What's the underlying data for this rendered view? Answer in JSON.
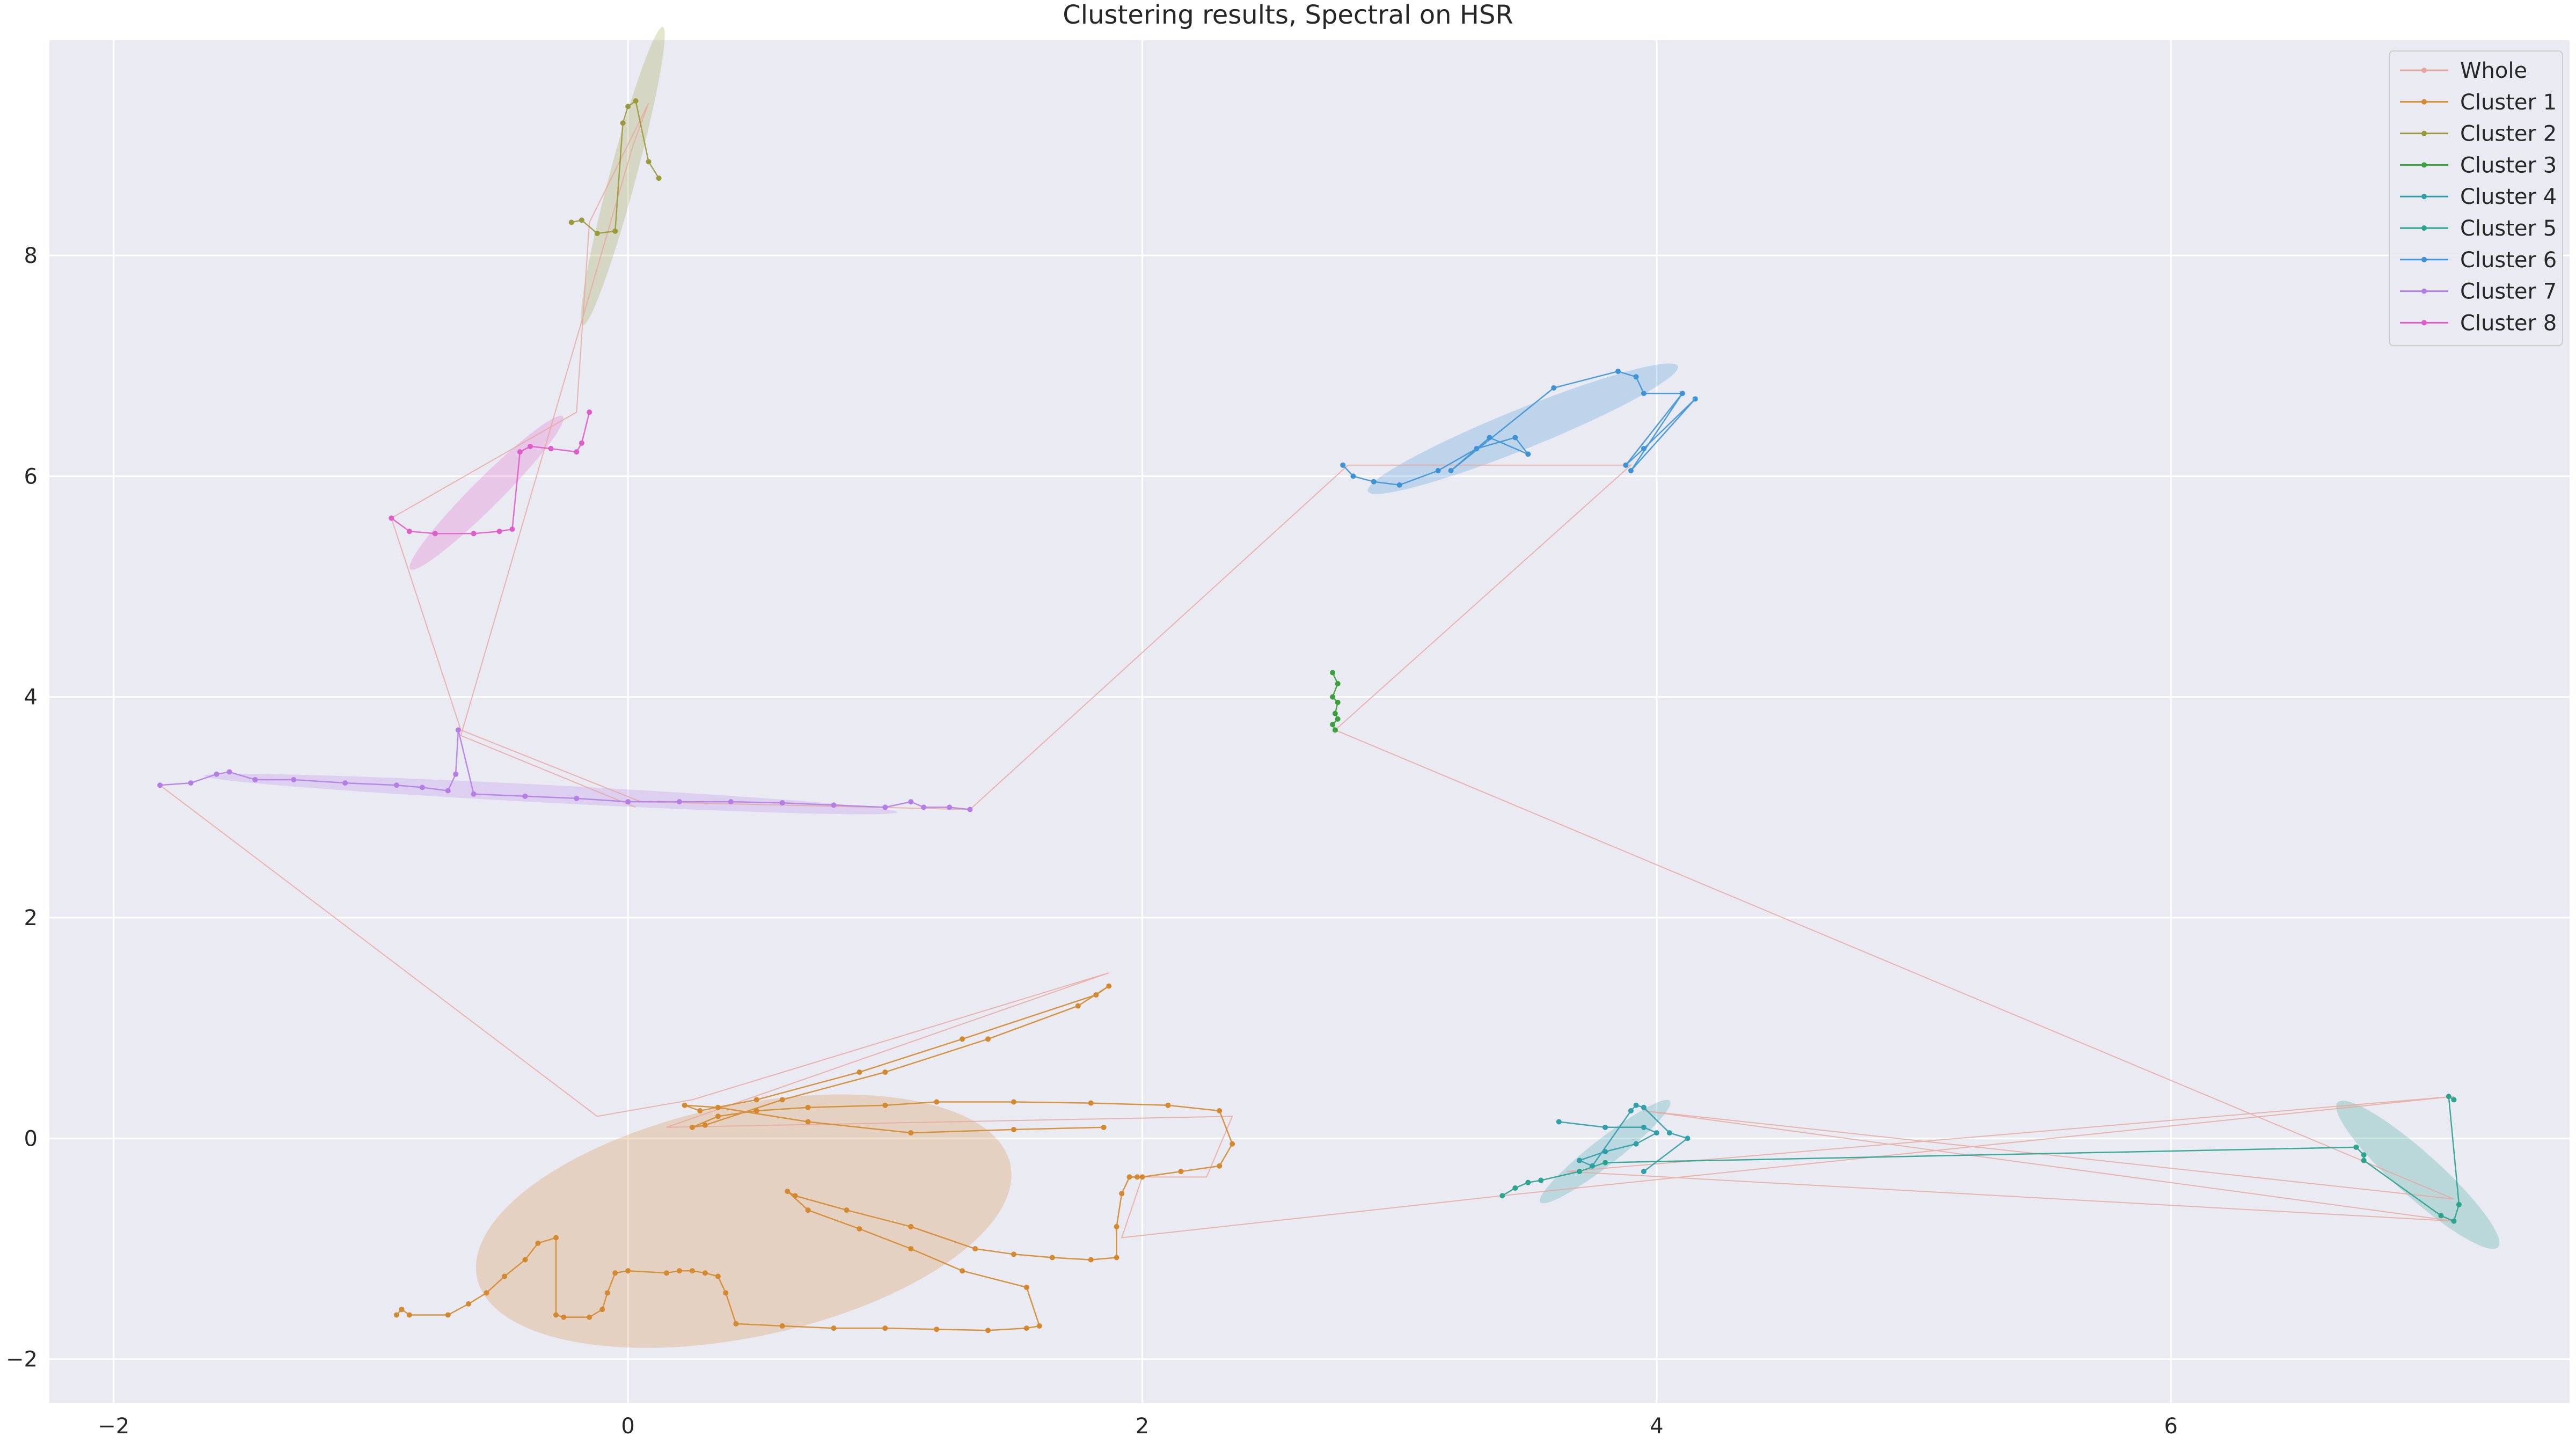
{
  "chart_data": {
    "type": "line",
    "title": "Clustering results, Spectral on HSR",
    "xlabel": "",
    "ylabel": "",
    "xlim": [
      -2.25,
      7.55
    ],
    "ylim": [
      -2.4,
      9.95
    ],
    "xticks": [
      -2,
      0,
      2,
      4,
      6
    ],
    "xtick_labels": [
      "−2",
      "0",
      "2",
      "4",
      "6"
    ],
    "yticks": [
      -2,
      0,
      2,
      4,
      6,
      8
    ],
    "ytick_labels": [
      "−2",
      "0",
      "2",
      "4",
      "6",
      "8"
    ],
    "grid": true,
    "legend_position": "top-right",
    "colors": {
      "background": "#eaeaf2",
      "grid": "#ffffff",
      "Whole": "#e8a59a",
      "Cluster 1": "#d4892e",
      "Cluster 2": "#9a9a3a",
      "Cluster 3": "#3aa03a",
      "Cluster 4": "#2f9fa8",
      "Cluster 5": "#2aa38f",
      "Cluster 6": "#3d93d6",
      "Cluster 7": "#b57ee6",
      "Cluster 8": "#e05cc8"
    },
    "legend": [
      "Whole",
      "Cluster 1",
      "Cluster 2",
      "Cluster 3",
      "Cluster 4",
      "Cluster 5",
      "Cluster 6",
      "Cluster 7",
      "Cluster 8"
    ],
    "series": [
      {
        "name": "Whole",
        "x": [
          -1.82,
          -0.12,
          0.25,
          1.87,
          0.15,
          2.35,
          2.25,
          2.0,
          1.92,
          3.4,
          7.1,
          3.65,
          7.1,
          3.95,
          7.1,
          2.75,
          3.9,
          2.8,
          1.33,
          0.05,
          -0.65,
          -0.92,
          -0.2,
          -0.15,
          0.08,
          0.02,
          -0.65,
          0.03
        ],
        "y": [
          3.2,
          0.2,
          0.35,
          1.5,
          0.1,
          0.2,
          -0.35,
          -0.35,
          -0.9,
          -0.52,
          0.38,
          -0.3,
          -0.75,
          0.25,
          -0.55,
          3.7,
          6.1,
          6.1,
          2.98,
          3.05,
          3.7,
          5.62,
          6.58,
          8.3,
          9.38,
          9.0,
          3.65,
          3.0
        ]
      },
      {
        "name": "Cluster 1",
        "x": [
          -0.9,
          -0.88,
          -0.85,
          -0.7,
          -0.62,
          -0.55,
          -0.48,
          -0.4,
          -0.35,
          -0.28,
          -0.28,
          -0.25,
          -0.15,
          -0.1,
          -0.08,
          -0.05,
          0.0,
          0.15,
          0.2,
          0.25,
          0.3,
          0.35,
          0.38,
          0.42,
          0.6,
          0.8,
          1.0,
          1.2,
          1.4,
          1.55,
          1.6,
          1.55,
          1.3,
          1.1,
          0.9,
          0.7,
          0.62,
          0.65,
          0.85,
          1.1,
          1.35,
          1.5,
          1.65,
          1.8,
          1.9,
          1.9,
          1.92,
          1.95,
          1.98,
          2.0,
          2.15,
          2.3,
          2.35,
          2.3,
          2.1,
          1.8,
          1.5,
          1.2,
          1.0,
          0.7,
          0.5,
          0.35,
          0.25,
          0.3,
          0.6,
          1.0,
          1.4,
          1.75,
          1.87,
          1.82,
          1.3,
          0.9,
          0.5,
          0.28,
          0.22,
          0.35,
          0.7,
          1.1,
          1.5,
          1.85
        ],
        "y": [
          -1.6,
          -1.55,
          -1.6,
          -1.6,
          -1.5,
          -1.4,
          -1.25,
          -1.1,
          -0.95,
          -0.9,
          -1.6,
          -1.62,
          -1.62,
          -1.55,
          -1.4,
          -1.22,
          -1.2,
          -1.22,
          -1.2,
          -1.2,
          -1.22,
          -1.25,
          -1.4,
          -1.68,
          -1.7,
          -1.72,
          -1.72,
          -1.73,
          -1.74,
          -1.72,
          -1.7,
          -1.35,
          -1.2,
          -1.0,
          -0.82,
          -0.65,
          -0.48,
          -0.52,
          -0.65,
          -0.8,
          -1.0,
          -1.05,
          -1.08,
          -1.1,
          -1.08,
          -0.8,
          -0.5,
          -0.35,
          -0.35,
          -0.35,
          -0.3,
          -0.25,
          -0.05,
          0.25,
          0.3,
          0.32,
          0.33,
          0.33,
          0.3,
          0.28,
          0.25,
          0.2,
          0.1,
          0.12,
          0.35,
          0.6,
          0.9,
          1.2,
          1.38,
          1.3,
          0.9,
          0.6,
          0.35,
          0.25,
          0.3,
          0.28,
          0.15,
          0.05,
          0.08,
          0.1
        ]
      },
      {
        "name": "Cluster 2",
        "x": [
          -0.22,
          -0.18,
          -0.12,
          -0.05,
          -0.02,
          0.0,
          0.03,
          0.08,
          0.12
        ],
        "y": [
          8.3,
          8.32,
          8.2,
          8.22,
          9.2,
          9.35,
          9.4,
          8.85,
          8.7
        ]
      },
      {
        "name": "Cluster 3",
        "x": [
          2.74,
          2.76,
          2.74,
          2.76,
          2.75,
          2.76,
          2.74,
          2.75
        ],
        "y": [
          4.22,
          4.12,
          4.0,
          3.95,
          3.85,
          3.8,
          3.75,
          3.7
        ]
      },
      {
        "name": "Cluster 4",
        "x": [
          3.62,
          3.8,
          3.95,
          4.0,
          3.92,
          3.8,
          3.7,
          3.75,
          3.9,
          3.92,
          3.95,
          4.05,
          4.12,
          3.95
        ],
        "y": [
          0.15,
          0.1,
          0.1,
          0.05,
          -0.05,
          -0.12,
          -0.2,
          -0.25,
          0.25,
          0.3,
          0.28,
          0.05,
          0.0,
          -0.3
        ]
      },
      {
        "name": "Cluster 5",
        "x": [
          3.4,
          3.45,
          3.5,
          3.55,
          3.7,
          3.8,
          6.72,
          6.75,
          6.75,
          7.05,
          7.1,
          7.12,
          7.08,
          7.1
        ],
        "y": [
          -0.52,
          -0.45,
          -0.4,
          -0.38,
          -0.3,
          -0.22,
          -0.08,
          -0.15,
          -0.2,
          -0.7,
          -0.75,
          -0.6,
          0.38,
          0.35
        ]
      },
      {
        "name": "Cluster 6",
        "x": [
          2.78,
          2.82,
          2.9,
          3.0,
          3.15,
          3.3,
          3.45,
          3.5,
          3.35,
          3.2,
          3.6,
          3.85,
          3.92,
          3.95,
          4.1,
          3.9,
          4.15,
          3.95,
          3.88,
          4.1
        ],
        "y": [
          6.1,
          6.0,
          5.95,
          5.92,
          6.05,
          6.25,
          6.35,
          6.2,
          6.35,
          6.05,
          6.8,
          6.95,
          6.9,
          6.75,
          6.75,
          6.05,
          6.7,
          6.25,
          6.1,
          6.75
        ]
      },
      {
        "name": "Cluster 7",
        "x": [
          -1.82,
          -1.7,
          -1.6,
          -1.55,
          -1.45,
          -1.3,
          -1.1,
          -0.9,
          -0.8,
          -0.7,
          -0.67,
          -0.66,
          -0.6,
          -0.4,
          -0.2,
          0.0,
          0.2,
          0.4,
          0.6,
          0.8,
          1.0,
          1.1,
          1.15,
          1.25,
          1.33
        ],
        "y": [
          3.2,
          3.22,
          3.3,
          3.32,
          3.25,
          3.25,
          3.22,
          3.2,
          3.18,
          3.15,
          3.3,
          3.7,
          3.12,
          3.1,
          3.08,
          3.05,
          3.05,
          3.05,
          3.04,
          3.02,
          3.0,
          3.05,
          3.0,
          3.0,
          2.98
        ]
      },
      {
        "name": "Cluster 8",
        "x": [
          -0.92,
          -0.85,
          -0.75,
          -0.6,
          -0.5,
          -0.45,
          -0.42,
          -0.38,
          -0.3,
          -0.2,
          -0.18,
          -0.15
        ],
        "y": [
          5.62,
          5.5,
          5.48,
          5.48,
          5.5,
          5.52,
          6.22,
          6.27,
          6.25,
          6.22,
          6.3,
          6.58
        ]
      }
    ],
    "ellipses": [
      {
        "name": "Cluster 1",
        "cx": 0.45,
        "cy": -0.75,
        "rx": 1.06,
        "ry": 1.05,
        "angle_deg": 12
      },
      {
        "name": "Cluster 2",
        "cx": -0.02,
        "cy": 8.72,
        "rx": 0.6,
        "ry": 0.12,
        "angle_deg": 75
      },
      {
        "name": "Cluster 4",
        "cx": 3.8,
        "cy": -0.12,
        "rx": 0.32,
        "ry": 0.12,
        "angle_deg": 38
      },
      {
        "name": "Cluster 5",
        "cx": 6.96,
        "cy": -0.33,
        "rx": 0.42,
        "ry": 0.2,
        "angle_deg": -42
      },
      {
        "name": "Cluster 6",
        "cx": 3.48,
        "cy": 6.43,
        "rx": 0.65,
        "ry": 0.18,
        "angle_deg": 22
      },
      {
        "name": "Cluster 7",
        "cx": -0.3,
        "cy": 3.12,
        "rx": 1.35,
        "ry": 0.08,
        "angle_deg": -3
      },
      {
        "name": "Cluster 8",
        "cx": -0.55,
        "cy": 5.85,
        "rx": 0.42,
        "ry": 0.13,
        "angle_deg": 45
      }
    ]
  }
}
